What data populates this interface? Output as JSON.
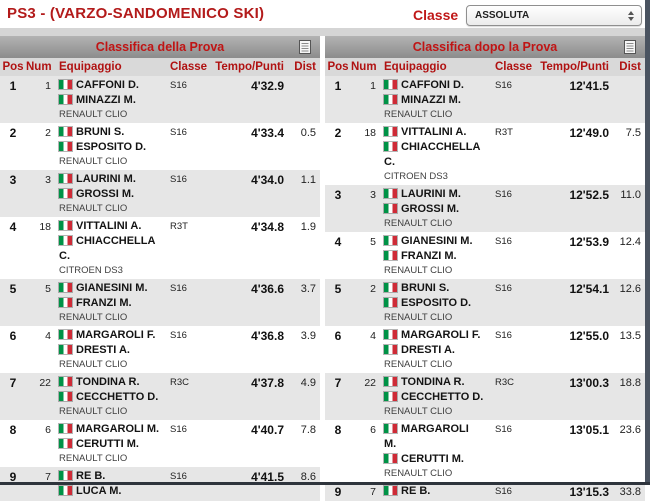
{
  "header": {
    "title": "PS3 - (VARZO-SANDOMENICO SKI)",
    "classe_label": "Classe",
    "classe_value": "ASSOLUTA"
  },
  "columns": {
    "pos": "Pos",
    "num": "Num",
    "crew": "Equipaggio",
    "classe": "Classe",
    "tempo": "Tempo/Punti",
    "dist": "Dist"
  },
  "icons": {
    "table_header_icon": "document-icon",
    "crew_flag": "italy-flag",
    "select_stepper": "up-down-arrows"
  },
  "colors": {
    "accent_red": "#b31b1b",
    "table_title_red": "#c01414",
    "header_bar_gray": "#9a9a9a",
    "col_header_gray": "#d9d9d9",
    "row_alt_gray": "#e6e6e6",
    "flag_green": "#009246",
    "flag_red": "#ce2b37"
  },
  "tables": [
    {
      "title": "Classifica della Prova",
      "rows": [
        {
          "pos": "1",
          "num": "1",
          "crew": [
            [
              "CAFFONI D."
            ],
            [
              "MINAZZI M."
            ]
          ],
          "car": "RENAULT CLIO",
          "classe": "S16",
          "tempo": "4'32.9",
          "dist": ""
        },
        {
          "pos": "2",
          "num": "2",
          "crew": [
            [
              "BRUNI S."
            ],
            [
              "ESPOSITO D."
            ]
          ],
          "car": "RENAULT CLIO",
          "classe": "S16",
          "tempo": "4'33.4",
          "dist": "0.5"
        },
        {
          "pos": "3",
          "num": "3",
          "crew": [
            [
              "LAURINI M."
            ],
            [
              "GROSSI M."
            ]
          ],
          "car": "RENAULT CLIO",
          "classe": "S16",
          "tempo": "4'34.0",
          "dist": "1.1"
        },
        {
          "pos": "4",
          "num": "18",
          "crew": [
            [
              "VITTALINI A."
            ],
            [
              "CHIACCHELLA",
              "C."
            ]
          ],
          "car": "CITROEN DS3",
          "classe": "R3T",
          "tempo": "4'34.8",
          "dist": "1.9"
        },
        {
          "pos": "5",
          "num": "5",
          "crew": [
            [
              "GIANESINI M."
            ],
            [
              "FRANZI M."
            ]
          ],
          "car": "RENAULT CLIO",
          "classe": "S16",
          "tempo": "4'36.6",
          "dist": "3.7"
        },
        {
          "pos": "6",
          "num": "4",
          "crew": [
            [
              "MARGAROLI F."
            ],
            [
              "DRESTI A."
            ]
          ],
          "car": "RENAULT CLIO",
          "classe": "S16",
          "tempo": "4'36.8",
          "dist": "3.9"
        },
        {
          "pos": "7",
          "num": "22",
          "crew": [
            [
              "TONDINA R."
            ],
            [
              "CECCHETTO D."
            ]
          ],
          "car": "RENAULT CLIO",
          "classe": "R3C",
          "tempo": "4'37.8",
          "dist": "4.9"
        },
        {
          "pos": "8",
          "num": "6",
          "crew": [
            [
              "MARGAROLI M."
            ],
            [
              "CERUTTI M."
            ]
          ],
          "car": "RENAULT CLIO",
          "classe": "S16",
          "tempo": "4'40.7",
          "dist": "7.8"
        },
        {
          "pos": "9",
          "num": "7",
          "crew": [
            [
              "RE B."
            ],
            [
              "LUCA M."
            ]
          ],
          "car": "",
          "classe": "S16",
          "tempo": "4'41.5",
          "dist": "8.6"
        }
      ]
    },
    {
      "title": "Classifica dopo la Prova",
      "rows": [
        {
          "pos": "1",
          "num": "1",
          "crew": [
            [
              "CAFFONI D."
            ],
            [
              "MINAZZI M."
            ]
          ],
          "car": "RENAULT CLIO",
          "classe": "S16",
          "tempo": "12'41.5",
          "dist": ""
        },
        {
          "pos": "2",
          "num": "18",
          "crew": [
            [
              "VITTALINI A."
            ],
            [
              "CHIACCHELLA",
              "C."
            ]
          ],
          "car": "CITROEN DS3",
          "classe": "R3T",
          "tempo": "12'49.0",
          "dist": "7.5"
        },
        {
          "pos": "3",
          "num": "3",
          "crew": [
            [
              "LAURINI M."
            ],
            [
              "GROSSI M."
            ]
          ],
          "car": "RENAULT CLIO",
          "classe": "S16",
          "tempo": "12'52.5",
          "dist": "11.0"
        },
        {
          "pos": "4",
          "num": "5",
          "crew": [
            [
              "GIANESINI M."
            ],
            [
              "FRANZI M."
            ]
          ],
          "car": "RENAULT CLIO",
          "classe": "S16",
          "tempo": "12'53.9",
          "dist": "12.4"
        },
        {
          "pos": "5",
          "num": "2",
          "crew": [
            [
              "BRUNI S."
            ],
            [
              "ESPOSITO D."
            ]
          ],
          "car": "RENAULT CLIO",
          "classe": "S16",
          "tempo": "12'54.1",
          "dist": "12.6"
        },
        {
          "pos": "6",
          "num": "4",
          "crew": [
            [
              "MARGAROLI F."
            ],
            [
              "DRESTI A."
            ]
          ],
          "car": "RENAULT CLIO",
          "classe": "S16",
          "tempo": "12'55.0",
          "dist": "13.5"
        },
        {
          "pos": "7",
          "num": "22",
          "crew": [
            [
              "TONDINA R."
            ],
            [
              "CECCHETTO D."
            ]
          ],
          "car": "RENAULT CLIO",
          "classe": "R3C",
          "tempo": "13'00.3",
          "dist": "18.8"
        },
        {
          "pos": "8",
          "num": "6",
          "crew": [
            [
              "MARGAROLI",
              "M."
            ],
            [
              "CERUTTI M."
            ]
          ],
          "car": "RENAULT CLIO",
          "classe": "S16",
          "tempo": "13'05.1",
          "dist": "23.6"
        },
        {
          "pos": "9",
          "num": "7",
          "crew": [
            [
              "RE B."
            ]
          ],
          "car": "",
          "classe": "S16",
          "tempo": "13'15.3",
          "dist": "33.8"
        }
      ]
    }
  ]
}
